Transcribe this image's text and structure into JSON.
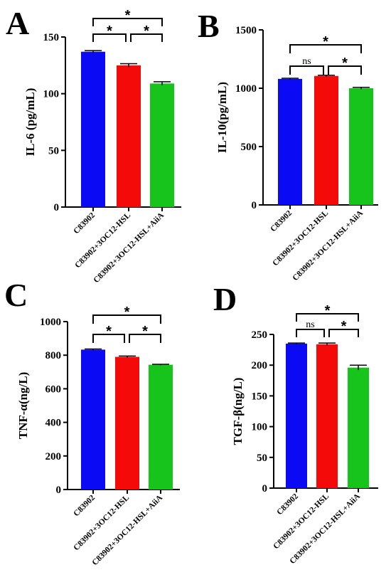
{
  "colors": {
    "blue": "#0a0af5",
    "red": "#f50a0a",
    "green": "#16c41c",
    "axis": "#000000"
  },
  "chart_data": [
    {
      "panel": "A",
      "type": "bar",
      "ylabel": "IL-6 (pg/mL)",
      "ylim": [
        0,
        150
      ],
      "yticks": [
        0,
        50,
        100,
        150
      ],
      "categories": [
        "C83902",
        "C83902+3OC12-HSL",
        "C83902+3OC12-HSL+AiiA"
      ],
      "values": [
        137,
        125,
        109
      ],
      "errors": [
        1,
        1.5,
        1.5
      ],
      "bar_colors": [
        "blue",
        "red",
        "green"
      ],
      "significance": [
        {
          "from": 0,
          "to": 2,
          "label": "*"
        },
        {
          "from": 0,
          "to": 1,
          "label": "*"
        },
        {
          "from": 1,
          "to": 2,
          "label": "*"
        }
      ]
    },
    {
      "panel": "B",
      "type": "bar",
      "ylabel": "IL-10(pg/mL)",
      "ylim": [
        0,
        1500
      ],
      "yticks": [
        0,
        500,
        1000,
        1500
      ],
      "categories": [
        "C83902",
        "C83902+3OC12-HSL",
        "C83902+3OC12-HSL+AiiA"
      ],
      "values": [
        1080,
        1105,
        1000
      ],
      "errors": [
        5,
        6,
        8
      ],
      "bar_colors": [
        "blue",
        "red",
        "green"
      ],
      "significance": [
        {
          "from": 0,
          "to": 2,
          "label": "*"
        },
        {
          "from": 0,
          "to": 1,
          "label": "ns"
        },
        {
          "from": 1,
          "to": 2,
          "label": "*"
        }
      ]
    },
    {
      "panel": "C",
      "type": "bar",
      "ylabel": "TNF-α(ng/L)",
      "ylim": [
        0,
        1000
      ],
      "yticks": [
        0,
        200,
        400,
        600,
        800,
        1000
      ],
      "categories": [
        "C83902",
        "C83902+3OC12-HSL",
        "C83902+3OC12-HSL+AiiA"
      ],
      "values": [
        833,
        790,
        743
      ],
      "errors": [
        4,
        5,
        3
      ],
      "bar_colors": [
        "blue",
        "red",
        "green"
      ],
      "significance": [
        {
          "from": 0,
          "to": 2,
          "label": "*"
        },
        {
          "from": 0,
          "to": 1,
          "label": "*"
        },
        {
          "from": 1,
          "to": 2,
          "label": "*"
        }
      ]
    },
    {
      "panel": "D",
      "type": "bar",
      "ylabel": "TGF-β(ng/L)",
      "ylim": [
        0,
        250
      ],
      "yticks": [
        0,
        50,
        100,
        150,
        200,
        250
      ],
      "categories": [
        "C83902",
        "C83902+3OC12-HSL",
        "C83902+3OC12-HSL+AiiA"
      ],
      "values": [
        235,
        234,
        196
      ],
      "errors": [
        1,
        2,
        4
      ],
      "bar_colors": [
        "blue",
        "red",
        "green"
      ],
      "significance": [
        {
          "from": 0,
          "to": 2,
          "label": "*"
        },
        {
          "from": 0,
          "to": 1,
          "label": "ns"
        },
        {
          "from": 1,
          "to": 2,
          "label": "*"
        }
      ]
    }
  ]
}
